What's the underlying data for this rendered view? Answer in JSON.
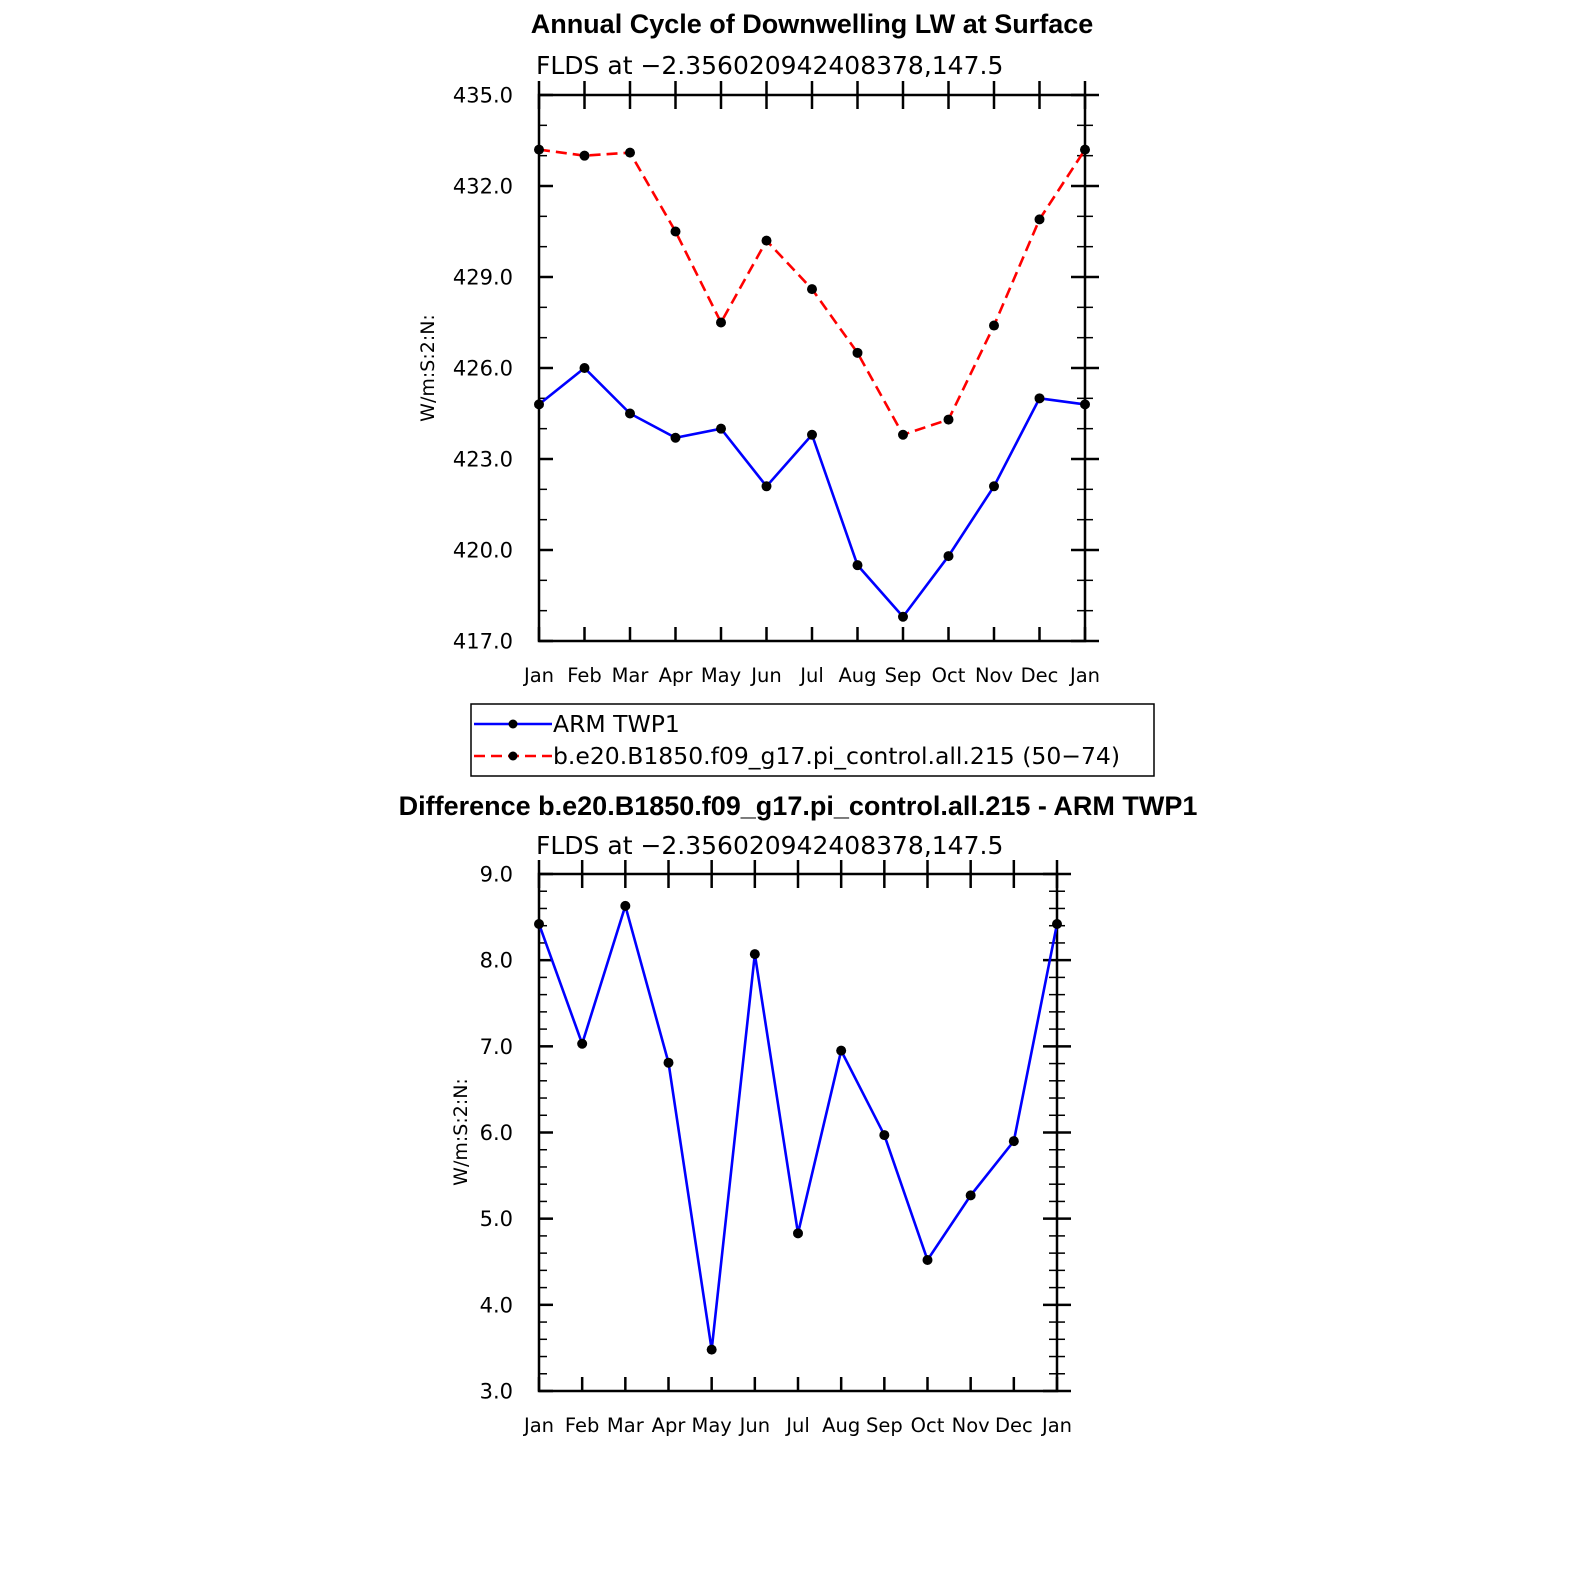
{
  "chart_data": [
    {
      "type": "line",
      "title": "Annual Cycle of Downwelling LW at Surface",
      "subtitle": "FLDS at −2.356020942408378,147.5",
      "ylabel": "W/m:S:2:N:",
      "xlabel": "",
      "categories": [
        "Jan",
        "Feb",
        "Mar",
        "Apr",
        "May",
        "Jun",
        "Jul",
        "Aug",
        "Sep",
        "Oct",
        "Nov",
        "Dec",
        "Jan"
      ],
      "ylim": [
        417.0,
        435.0
      ],
      "yticks": [
        "417.0",
        "420.0",
        "423.0",
        "426.0",
        "429.0",
        "432.0",
        "435.0"
      ],
      "grid": false,
      "legend_position": "bottom",
      "series": [
        {
          "name": "ARM TWP1",
          "color": "#0000ff",
          "line_style": "solid",
          "values": [
            424.8,
            426.0,
            424.5,
            423.7,
            424.0,
            422.1,
            423.8,
            419.5,
            417.8,
            419.8,
            422.1,
            425.0,
            424.8
          ]
        },
        {
          "name": "b.e20.B1850.f09_g17.pi_control.all.215 (50−74)",
          "color": "#ff0000",
          "line_style": "dashed",
          "values": [
            433.2,
            433.0,
            433.1,
            430.5,
            427.5,
            430.2,
            428.6,
            426.5,
            423.8,
            424.3,
            427.4,
            430.9,
            433.2
          ]
        }
      ]
    },
    {
      "type": "line",
      "title": "Difference b.e20.B1850.f09_g17.pi_control.all.215 - ARM TWP1",
      "subtitle": "FLDS at −2.356020942408378,147.5",
      "ylabel": "W/m:S:2:N:",
      "xlabel": "",
      "categories": [
        "Jan",
        "Feb",
        "Mar",
        "Apr",
        "May",
        "Jun",
        "Jul",
        "Aug",
        "Sep",
        "Oct",
        "Nov",
        "Dec",
        "Jan"
      ],
      "ylim": [
        3.0,
        9.0
      ],
      "yticks": [
        "3.0",
        "4.0",
        "5.0",
        "6.0",
        "7.0",
        "8.0",
        "9.0"
      ],
      "grid": false,
      "series": [
        {
          "color": "#0000ff",
          "line_style": "solid",
          "values": [
            8.42,
            7.03,
            8.63,
            6.81,
            3.48,
            8.07,
            4.83,
            6.95,
            5.97,
            4.52,
            5.27,
            5.9,
            8.42
          ]
        }
      ]
    }
  ]
}
